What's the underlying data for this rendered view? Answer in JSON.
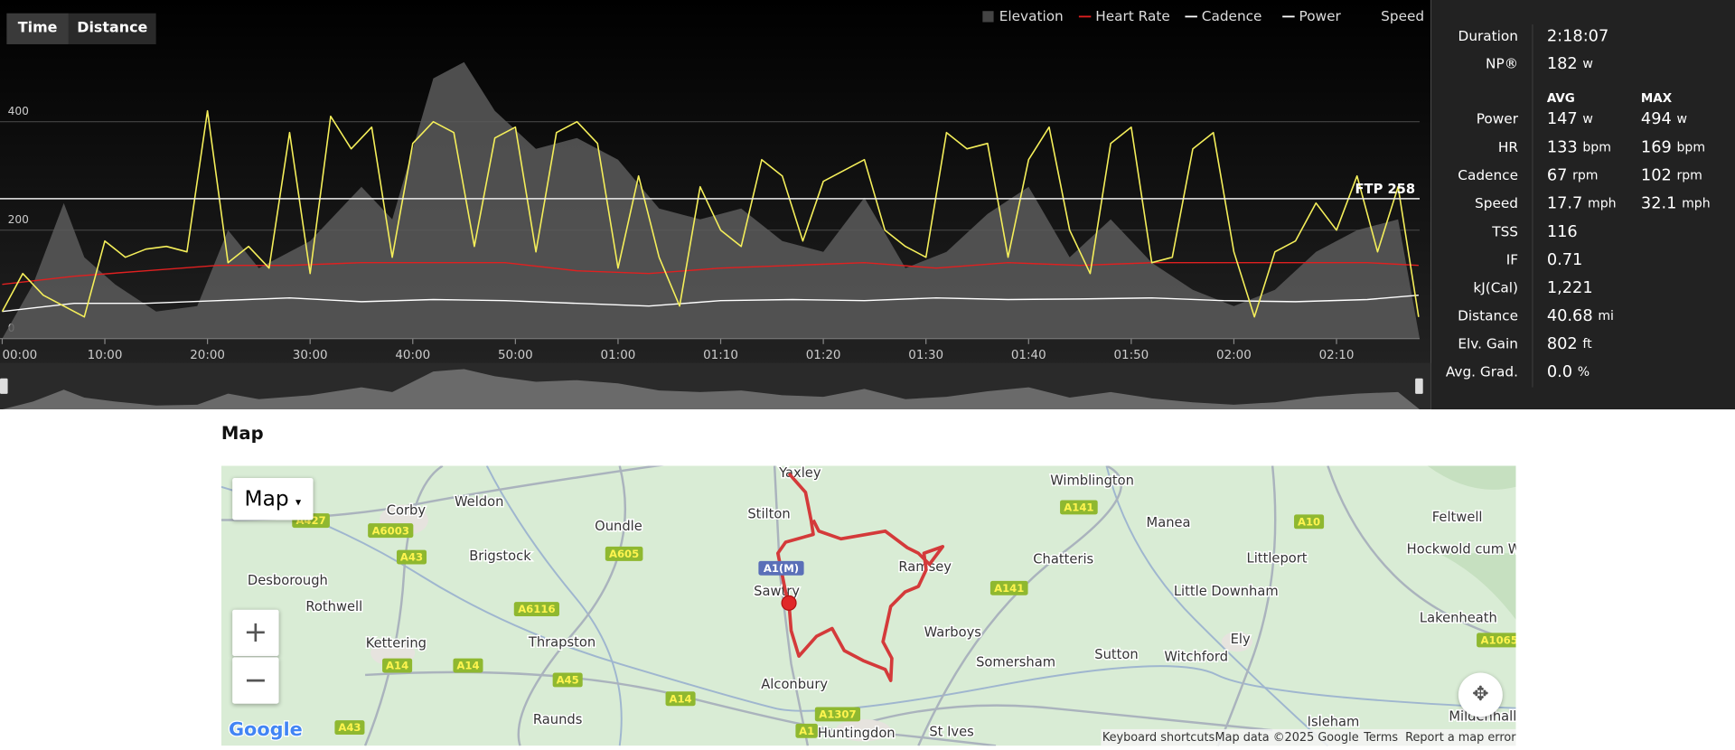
{
  "tabs": [
    "Time",
    "Distance"
  ],
  "chart": {
    "type": "line",
    "xlim": [
      0,
      138.1
    ],
    "ylim": [
      0,
      560
    ],
    "yticks": [
      0,
      200,
      400
    ],
    "xticks": [
      {
        "value": 0,
        "label": "00:00"
      },
      {
        "value": 10,
        "label": "10:00"
      },
      {
        "value": 20,
        "label": "20:00"
      },
      {
        "value": 30,
        "label": "30:00"
      },
      {
        "value": 40,
        "label": "40:00"
      },
      {
        "value": 50,
        "label": "50:00"
      },
      {
        "value": 60,
        "label": "01:00"
      },
      {
        "value": 70,
        "label": "01:10"
      },
      {
        "value": 80,
        "label": "01:20"
      },
      {
        "value": 90,
        "label": "01:30"
      },
      {
        "value": 100,
        "label": "01:40"
      },
      {
        "value": 110,
        "label": "01:50"
      },
      {
        "value": 120,
        "label": "02:00"
      },
      {
        "value": 130,
        "label": "02:10"
      }
    ],
    "ftp": 258,
    "ftp_label": "FTP 258",
    "speed_label": "Speed",
    "series": [
      {
        "name": "Elevation",
        "kind": "area",
        "color": "#5a5a5a",
        "legend_color": "#444",
        "x": [
          0,
          3,
          6,
          8,
          11,
          15,
          19,
          22,
          25,
          30,
          35,
          38,
          42,
          45,
          48,
          52,
          56,
          60,
          64,
          68,
          72,
          76,
          80,
          84,
          88,
          92,
          96,
          100,
          104,
          108,
          112,
          116,
          120,
          124,
          128,
          132,
          136,
          138.1
        ],
        "values": [
          0,
          100,
          250,
          150,
          100,
          50,
          60,
          200,
          130,
          180,
          280,
          220,
          480,
          510,
          420,
          350,
          370,
          330,
          240,
          220,
          240,
          180,
          160,
          260,
          130,
          160,
          230,
          280,
          150,
          220,
          140,
          90,
          60,
          90,
          160,
          200,
          220,
          0
        ]
      },
      {
        "name": "Heart Rate",
        "kind": "line",
        "color": "#e02020",
        "legend_color": "#e02020",
        "x": [
          0,
          7,
          14,
          21,
          28,
          35,
          42,
          49,
          56,
          63,
          70,
          77,
          84,
          91,
          98,
          105,
          112,
          119,
          126,
          133,
          138
        ],
        "values": [
          100,
          115,
          125,
          135,
          135,
          140,
          140,
          140,
          125,
          120,
          130,
          135,
          140,
          130,
          140,
          135,
          140,
          140,
          140,
          140,
          135
        ]
      },
      {
        "name": "Cadence",
        "kind": "line",
        "color": "#ffffff",
        "legend_color": "#ffffff",
        "x": [
          0,
          7,
          14,
          21,
          28,
          35,
          42,
          49,
          56,
          63,
          70,
          77,
          84,
          91,
          98,
          105,
          112,
          119,
          126,
          133,
          138
        ],
        "values": [
          50,
          65,
          65,
          70,
          75,
          68,
          72,
          70,
          65,
          60,
          70,
          72,
          70,
          75,
          72,
          73,
          75,
          70,
          68,
          72,
          80
        ]
      },
      {
        "name": "Power",
        "kind": "line",
        "color": "#f5ef5a",
        "legend_color": "#ffffff",
        "x": [
          0,
          2,
          4,
          6,
          8,
          10,
          12,
          14,
          16,
          18,
          20,
          22,
          24,
          26,
          28,
          30,
          32,
          34,
          36,
          38,
          40,
          42,
          44,
          46,
          48,
          50,
          52,
          54,
          56,
          58,
          60,
          62,
          64,
          66,
          68,
          70,
          72,
          74,
          76,
          78,
          80,
          82,
          84,
          86,
          88,
          90,
          92,
          94,
          96,
          98,
          100,
          102,
          104,
          106,
          108,
          110,
          112,
          114,
          116,
          118,
          120,
          122,
          124,
          126,
          128,
          130,
          132,
          134,
          136,
          138
        ],
        "values": [
          50,
          120,
          80,
          60,
          40,
          180,
          150,
          165,
          170,
          160,
          420,
          140,
          170,
          130,
          380,
          120,
          410,
          350,
          390,
          150,
          360,
          400,
          380,
          170,
          370,
          390,
          160,
          380,
          400,
          360,
          130,
          300,
          150,
          60,
          280,
          200,
          170,
          330,
          300,
          180,
          290,
          310,
          330,
          200,
          170,
          150,
          380,
          350,
          360,
          150,
          330,
          390,
          200,
          120,
          360,
          390,
          140,
          150,
          350,
          380,
          160,
          40,
          160,
          180,
          250,
          200,
          300,
          160,
          280,
          40
        ]
      }
    ]
  },
  "stats": {
    "top": [
      {
        "label": "Duration",
        "value": "2:18:07"
      },
      {
        "label": "NP®",
        "value": "182",
        "unit": "w"
      }
    ],
    "headers": [
      "AVG",
      "MAX"
    ],
    "metrics": [
      {
        "label": "Power",
        "avg": "147",
        "avg_unit": "w",
        "max": "494",
        "max_unit": "w"
      },
      {
        "label": "HR",
        "avg": "133",
        "avg_unit": "bpm",
        "max": "169",
        "max_unit": "bpm"
      },
      {
        "label": "Cadence",
        "avg": "67",
        "avg_unit": "rpm",
        "max": "102",
        "max_unit": "rpm"
      },
      {
        "label": "Speed",
        "avg": "17.7",
        "avg_unit": "mph",
        "max": "32.1",
        "max_unit": "mph"
      }
    ],
    "summary": [
      {
        "label": "TSS",
        "value": "116"
      },
      {
        "label": "IF",
        "value": "0.71"
      },
      {
        "label": "kJ(Cal)",
        "value": "1,221"
      },
      {
        "label": "Distance",
        "value": "40.68",
        "unit": "mi"
      },
      {
        "label": "Elv. Gain",
        "value": "802",
        "unit": "ft"
      },
      {
        "label": "Avg. Grad.",
        "value": "0.0",
        "unit": "%"
      }
    ]
  },
  "map": {
    "title": "Map",
    "type_button": "Map",
    "zoom_in": "+",
    "zoom_out": "−",
    "logo": "Google",
    "places": [
      "Yaxley",
      "Wimblington",
      "Corby",
      "Weldon",
      "Stilton",
      "Manea",
      "Feltwell",
      "Oundle",
      "Chatteris",
      "Littleport",
      "Hockwold cum Wilton",
      "Brigstock",
      "Ramsey",
      "Desborough",
      "Sawtry",
      "Little Downham",
      "Rothwell",
      "Lakenheath",
      "Warboys",
      "Thrapston",
      "Kettering",
      "Ely",
      "Somersham",
      "Sutton",
      "Witchford",
      "Alconbury",
      "Raunds",
      "Huntingdon",
      "St Ives",
      "Isleham",
      "Mildenhall"
    ],
    "roads": [
      "A427",
      "A6003",
      "A43",
      "A605",
      "A6116",
      "A14",
      "A14",
      "A45",
      "A14",
      "A43",
      "A1307",
      "A1",
      "A141",
      "A141",
      "A10",
      "A1065",
      "A1(M)"
    ],
    "footer": [
      "Keyboard shortcuts",
      "Map data ©2025 Google",
      "Terms",
      "Report a map error"
    ]
  }
}
